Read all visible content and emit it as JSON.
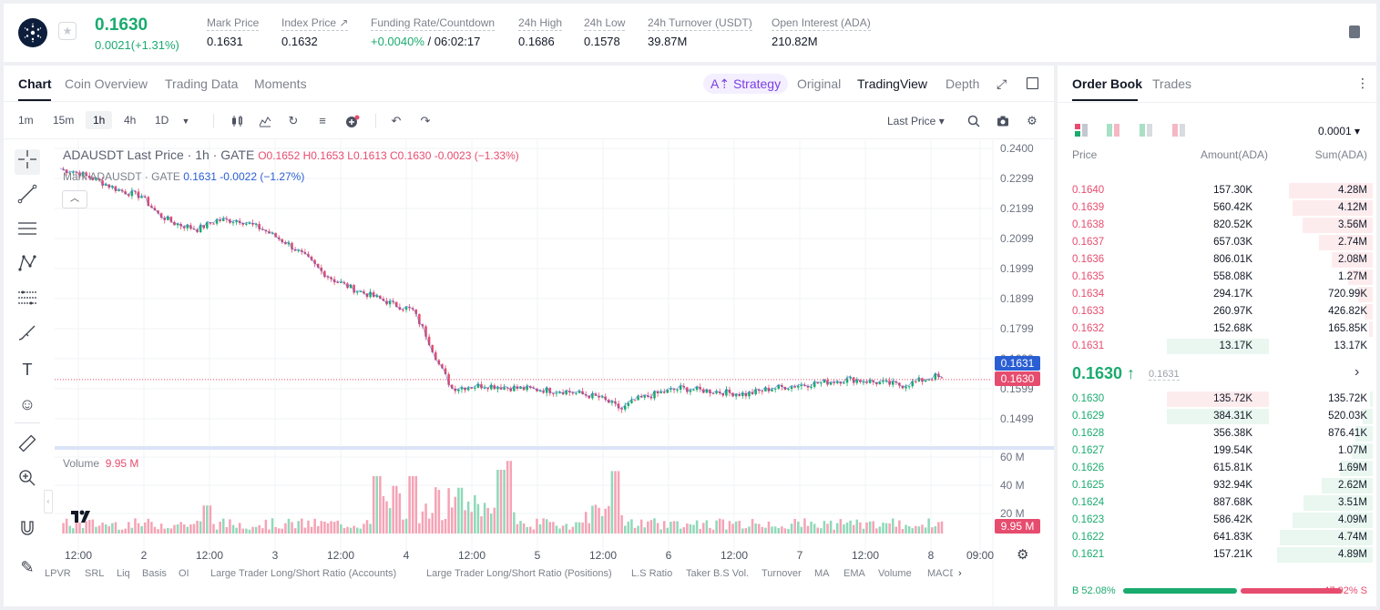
{
  "ticker": {
    "last_price": "0.1630",
    "change": "0.0021(+1.31%)",
    "stats": [
      {
        "label": "Mark Price",
        "value": "0.1631"
      },
      {
        "label": "Index Price ↗",
        "value": "0.1632"
      },
      {
        "label": "Funding Rate/Countdown",
        "value_green": "+0.0040%",
        "value": " / 06:02:17"
      },
      {
        "label": "24h High",
        "value": "0.1686"
      },
      {
        "label": "24h Low",
        "value": "0.1578"
      },
      {
        "label": "24h Turnover (USDT)",
        "value": "39.87M"
      },
      {
        "label": "Open Interest (ADA)",
        "value": "210.82M"
      }
    ]
  },
  "chart_tabs": [
    "Chart",
    "Coin Overview",
    "Trading Data",
    "Moments"
  ],
  "view_tabs": {
    "strategy": "A⇡ Strategy",
    "original": "Original",
    "tradingview": "TradingView",
    "depth": "Depth"
  },
  "timeframes": [
    "1m",
    "15m",
    "1h",
    "4h",
    "1D"
  ],
  "price_type": "Last Price ▾",
  "legend": {
    "main": "ADAUSDT Last Price · 1h · GATE",
    "ohlc": "O0.1652 H0.1653 L0.1613 C0.1630 -0.0023 (−1.33%)",
    "mark_prefix": "Mark ADAUSDT · GATE",
    "mark_vals": "0.1631 -0.0022 (−1.27%)"
  },
  "volume_legend": {
    "label": "Volume",
    "value": "9.95 M"
  },
  "tags": {
    "mark": "0.1631",
    "last": "0.1630",
    "vol": "9.95 M"
  },
  "indicators": [
    "LPVR",
    "SRL",
    "Liq",
    "Basis",
    "OI",
    "Large Trader Long/Short Ratio (Accounts)",
    "Large Trader Long/Short Ratio (Positions)",
    "L.S Ratio",
    "Taker B.S Vol.",
    "Turnover",
    "MA",
    "EMA",
    "Volume",
    "MACD"
  ],
  "chart_data": {
    "type": "candlestick",
    "yticks": [
      "0.2400",
      "0.2299",
      "0.2199",
      "0.2099",
      "0.1999",
      "0.1899",
      "0.1799",
      "0.1699",
      "0.1599",
      "0.1499"
    ],
    "ylim": [
      0.145,
      0.24
    ],
    "vol_ticks": [
      "60 M",
      "40 M",
      "20 M"
    ],
    "xticks": [
      "12:00",
      "2",
      "12:00",
      "3",
      "12:00",
      "4",
      "12:00",
      "5",
      "12:00",
      "6",
      "12:00",
      "7",
      "12:00",
      "8",
      "09:00"
    ],
    "path": [
      [
        0,
        0.233
      ],
      [
        5,
        0.232
      ],
      [
        12,
        0.229
      ],
      [
        18,
        0.226
      ],
      [
        25,
        0.224
      ],
      [
        30,
        0.218
      ],
      [
        35,
        0.215
      ],
      [
        42,
        0.213
      ],
      [
        48,
        0.216
      ],
      [
        55,
        0.216
      ],
      [
        62,
        0.213
      ],
      [
        70,
        0.208
      ],
      [
        76,
        0.203
      ],
      [
        80,
        0.199
      ],
      [
        84,
        0.196
      ],
      [
        90,
        0.193
      ],
      [
        95,
        0.191
      ],
      [
        102,
        0.188
      ],
      [
        108,
        0.186
      ],
      [
        112,
        0.178
      ],
      [
        116,
        0.168
      ],
      [
        120,
        0.16
      ],
      [
        130,
        0.161
      ],
      [
        140,
        0.16
      ],
      [
        155,
        0.159
      ],
      [
        165,
        0.157
      ],
      [
        172,
        0.153
      ],
      [
        176,
        0.156
      ],
      [
        182,
        0.158
      ],
      [
        190,
        0.16
      ],
      [
        200,
        0.159
      ],
      [
        210,
        0.158
      ],
      [
        218,
        0.16
      ],
      [
        226,
        0.161
      ],
      [
        234,
        0.162
      ],
      [
        242,
        0.163
      ],
      [
        250,
        0.162
      ],
      [
        258,
        0.161
      ],
      [
        265,
        0.163
      ],
      [
        268,
        0.164
      ],
      [
        270,
        0.163
      ]
    ],
    "volume_spikes": [
      [
        45,
        22
      ],
      [
        97,
        45
      ],
      [
        108,
        45
      ],
      [
        135,
        50
      ],
      [
        137,
        57
      ],
      [
        170,
        49
      ]
    ]
  },
  "order_book": {
    "tabs": [
      "Order Book",
      "Trades"
    ],
    "precision": "0.0001 ▾",
    "headers": {
      "price": "Price",
      "amount": "Amount(ADA)",
      "sum": "Sum(ADA)"
    },
    "asks": [
      {
        "price": "0.1640",
        "amount": "157.30K",
        "sum": "4.28M",
        "depth": 0.875
      },
      {
        "price": "0.1639",
        "amount": "560.42K",
        "sum": "4.12M",
        "depth": 0.84
      },
      {
        "price": "0.1638",
        "amount": "820.52K",
        "sum": "3.56M",
        "depth": 0.73
      },
      {
        "price": "0.1637",
        "amount": "657.03K",
        "sum": "2.74M",
        "depth": 0.56
      },
      {
        "price": "0.1636",
        "amount": "806.01K",
        "sum": "2.08M",
        "depth": 0.43
      },
      {
        "price": "0.1635",
        "amount": "558.08K",
        "sum": "1.27M",
        "depth": 0.26
      },
      {
        "price": "0.1634",
        "amount": "294.17K",
        "sum": "720.99K",
        "depth": 0.15
      },
      {
        "price": "0.1633",
        "amount": "260.97K",
        "sum": "426.82K",
        "depth": 0.09
      },
      {
        "price": "0.1632",
        "amount": "152.68K",
        "sum": "165.85K",
        "depth": 0.035
      },
      {
        "price": "0.1631",
        "amount": "13.17K",
        "sum": "13.17K",
        "depth": 0.003
      }
    ],
    "mid": {
      "price": "0.1630 ↑",
      "mark": "0.1631"
    },
    "bids": [
      {
        "price": "0.1630",
        "amount": "135.72K",
        "sum": "135.72K",
        "depth": 0.028
      },
      {
        "price": "0.1629",
        "amount": "384.31K",
        "sum": "520.03K",
        "depth": 0.106
      },
      {
        "price": "0.1628",
        "amount": "356.38K",
        "sum": "876.41K",
        "depth": 0.18
      },
      {
        "price": "0.1627",
        "amount": "199.54K",
        "sum": "1.07M",
        "depth": 0.22
      },
      {
        "price": "0.1626",
        "amount": "615.81K",
        "sum": "1.69M",
        "depth": 0.345
      },
      {
        "price": "0.1625",
        "amount": "932.94K",
        "sum": "2.62M",
        "depth": 0.535
      },
      {
        "price": "0.1624",
        "amount": "887.68K",
        "sum": "3.51M",
        "depth": 0.72
      },
      {
        "price": "0.1623",
        "amount": "586.42K",
        "sum": "4.09M",
        "depth": 0.835
      },
      {
        "price": "0.1622",
        "amount": "641.83K",
        "sum": "4.74M",
        "depth": 0.97
      },
      {
        "price": "0.1621",
        "amount": "157.21K",
        "sum": "4.89M",
        "depth": 1.0
      }
    ],
    "ratio": {
      "buy": "B 52.08%",
      "sell": "47.92% S",
      "buy_pct": 52.08
    }
  },
  "colors": {
    "green": "#1aab6f",
    "red": "#e64c6e",
    "blue": "#2a5ed4"
  }
}
